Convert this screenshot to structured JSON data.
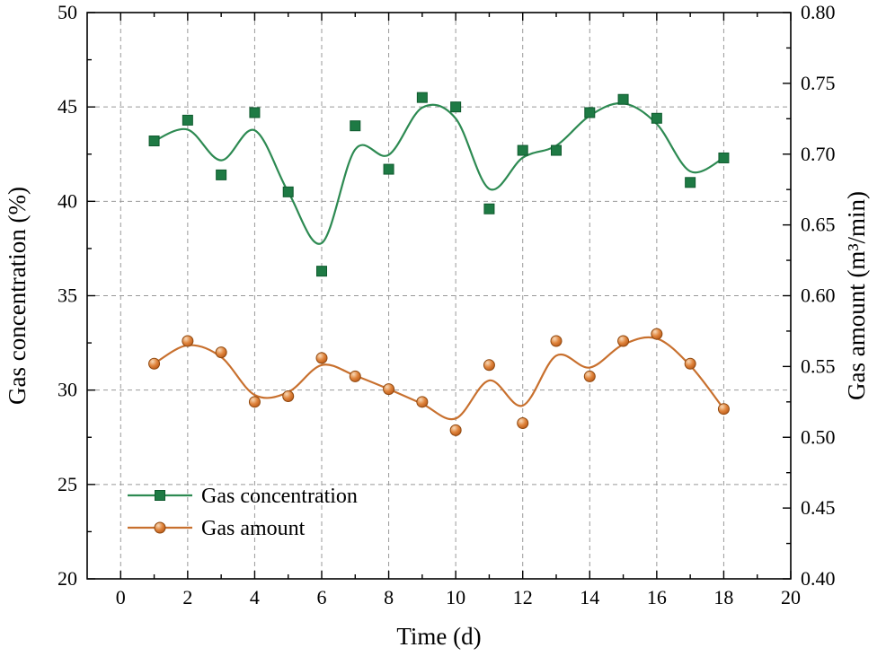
{
  "chart_data": {
    "type": "line",
    "title": "",
    "x_values": [
      1,
      2,
      3,
      4,
      5,
      6,
      7,
      8,
      9,
      10,
      11,
      12,
      13,
      14,
      15,
      16,
      17,
      18
    ],
    "series": [
      {
        "name": "Gas concentration",
        "axis": "left",
        "marker": "square",
        "color": "#1e7a44",
        "line_color": "#2d8a52",
        "values": [
          43.2,
          44.3,
          41.4,
          44.7,
          40.5,
          36.3,
          44.0,
          41.7,
          45.5,
          45.0,
          39.6,
          42.7,
          42.7,
          44.7,
          45.4,
          44.4,
          41.0,
          42.3
        ]
      },
      {
        "name": "Gas amount",
        "axis": "right",
        "marker": "sphere",
        "color": "#c8702e",
        "line_color": "#c8702e",
        "values": [
          0.552,
          0.568,
          0.56,
          0.525,
          0.529,
          0.556,
          0.543,
          0.534,
          0.525,
          0.505,
          0.551,
          0.51,
          0.568,
          0.543,
          0.568,
          0.573,
          0.552,
          0.52
        ]
      }
    ],
    "x_axis": {
      "label": "Time (d)",
      "min": -1,
      "max": 20,
      "major_ticks": [
        0,
        2,
        4,
        6,
        8,
        10,
        12,
        14,
        16,
        18,
        20
      ],
      "tick_labels": [
        "0",
        "2",
        "4",
        "6",
        "8",
        "10",
        "12",
        "14",
        "16",
        "18",
        "20"
      ],
      "minor_ticks": [
        1,
        3,
        5,
        7,
        9,
        11,
        13,
        15,
        17,
        19
      ]
    },
    "left_axis": {
      "label": "Gas concentration (%)",
      "min": 20,
      "max": 50,
      "major_ticks": [
        20,
        25,
        30,
        35,
        40,
        45,
        50
      ],
      "tick_labels": [
        "20",
        "25",
        "30",
        "35",
        "40",
        "45",
        "50"
      ],
      "minor_ticks": [
        22.5,
        27.5,
        32.5,
        37.5,
        42.5,
        47.5
      ]
    },
    "right_axis": {
      "label": "Gas amount (m³/min)",
      "min": 0.4,
      "max": 0.8,
      "major_ticks": [
        0.4,
        0.45,
        0.5,
        0.55,
        0.6,
        0.65,
        0.7,
        0.75,
        0.8
      ],
      "tick_labels": [
        "0.40",
        "0.45",
        "0.50",
        "0.55",
        "0.60",
        "0.65",
        "0.70",
        "0.75",
        "0.80"
      ],
      "minor_ticks": [
        0.425,
        0.475,
        0.525,
        0.575,
        0.625,
        0.675,
        0.725,
        0.775
      ]
    },
    "legend": {
      "position": "bottom-left",
      "items": [
        "Gas concentration",
        "Gas amount"
      ]
    },
    "grid": {
      "style": "dashed",
      "on": true
    },
    "colors": {
      "grid": "#999999",
      "frame": "#000000",
      "text": "#000000",
      "background": "#ffffff",
      "concentration_fill": "#1e7a44",
      "concentration_edge": "#0f5a2e",
      "concentration_line": "#2d8a52",
      "amount_line": "#c8702e",
      "amount_edge": "#8f480f",
      "ball_highlight": "#f8d9b8",
      "ball_mid": "#e0853d",
      "ball_dark": "#b55313"
    }
  }
}
